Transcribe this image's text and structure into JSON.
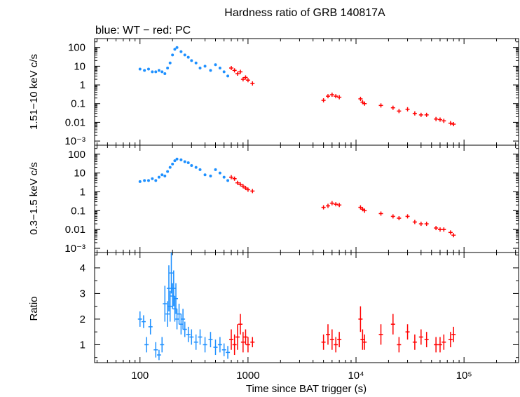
{
  "chart_data": [
    {
      "type": "scatter",
      "panel": "top",
      "title": "Hardness ratio of GRB 140817A",
      "subtitle": "blue: WT − red: PC",
      "ylabel": "1.51−10 keV c/s",
      "yscale": "log",
      "ylim": [
        0.0006,
        300
      ],
      "ytick_labels": [
        "100",
        "10",
        "1",
        "0.1",
        "0.01",
        "10⁻³"
      ],
      "series": [
        {
          "color": "#1e90ff",
          "x": [
            100,
            110,
            120,
            130,
            140,
            150,
            160,
            170,
            180,
            190,
            200,
            210,
            220,
            240,
            260,
            280,
            300,
            330,
            360,
            400,
            450,
            500,
            550,
            600,
            650
          ],
          "y": [
            7,
            6,
            7,
            5,
            5,
            6,
            5,
            4,
            8,
            15,
            40,
            80,
            100,
            60,
            40,
            30,
            20,
            15,
            8,
            10,
            6,
            12,
            8,
            5,
            3
          ]
        },
        {
          "color": "#ff0000",
          "x": [
            700,
            750,
            800,
            850,
            900,
            950,
            1000,
            1100
          ],
          "y": [
            8,
            6,
            4,
            5,
            2,
            2.5,
            1.8,
            1.2
          ],
          "xerr_style": "cross"
        },
        {
          "color": "#ff0000",
          "x": [
            5000,
            5500,
            6000,
            6500,
            7000,
            11000,
            11500,
            12000,
            17000,
            22000,
            25000,
            30000,
            35000,
            40000,
            45000,
            55000,
            60000,
            65000,
            75000,
            80000
          ],
          "y": [
            0.15,
            0.25,
            0.3,
            0.25,
            0.22,
            0.18,
            0.12,
            0.1,
            0.08,
            0.06,
            0.04,
            0.05,
            0.03,
            0.025,
            0.025,
            0.015,
            0.014,
            0.012,
            0.009,
            0.008
          ],
          "xerr_style": "cross"
        }
      ]
    },
    {
      "type": "scatter",
      "panel": "middle",
      "ylabel": "0.3−1.5 keV c/s",
      "yscale": "log",
      "ylim": [
        0.0006,
        300
      ],
      "ytick_labels": [
        "100",
        "10",
        "1",
        "0.1",
        "0.01",
        "10⁻³"
      ],
      "series": [
        {
          "color": "#1e90ff",
          "x": [
            100,
            110,
            120,
            130,
            140,
            150,
            160,
            170,
            180,
            190,
            200,
            210,
            220,
            240,
            260,
            280,
            300,
            330,
            360,
            400,
            450,
            500,
            550,
            600,
            650
          ],
          "y": [
            3.5,
            4,
            4,
            5,
            4,
            6,
            8,
            7,
            12,
            20,
            30,
            45,
            55,
            50,
            40,
            35,
            25,
            20,
            15,
            8,
            7,
            15,
            10,
            6,
            4
          ]
        },
        {
          "color": "#ff0000",
          "x": [
            700,
            750,
            800,
            850,
            900,
            950,
            1000,
            1100
          ],
          "y": [
            6,
            5,
            3,
            2.5,
            2,
            1.6,
            1.3,
            1.1
          ],
          "xerr_style": "cross"
        },
        {
          "color": "#ff0000",
          "x": [
            5000,
            5500,
            6000,
            6500,
            7000,
            11000,
            11500,
            12000,
            17000,
            22000,
            25000,
            30000,
            35000,
            40000,
            45000,
            55000,
            60000,
            65000,
            75000,
            80000
          ],
          "y": [
            0.15,
            0.18,
            0.25,
            0.22,
            0.2,
            0.15,
            0.12,
            0.1,
            0.07,
            0.05,
            0.04,
            0.05,
            0.025,
            0.02,
            0.02,
            0.012,
            0.01,
            0.01,
            0.007,
            0.005
          ],
          "xerr_style": "cross"
        }
      ]
    },
    {
      "type": "scatter",
      "panel": "bottom",
      "xlabel": "Time since BAT trigger (s)",
      "ylabel": "Ratio",
      "xscale": "log",
      "xlim": [
        38,
        320000
      ],
      "ylim": [
        0.3,
        4.6
      ],
      "xtick_labels": [
        "100",
        "1000",
        "10⁴",
        "10⁵"
      ],
      "ytick_labels": [
        "1",
        "2",
        "3",
        "4"
      ],
      "series": [
        {
          "color": "#1e90ff",
          "x": [
            100,
            108,
            115,
            125,
            140,
            150,
            160,
            170,
            180,
            185,
            190,
            195,
            200,
            205,
            210,
            215,
            220,
            230,
            240,
            250,
            260,
            280,
            300,
            330,
            360,
            400,
            450,
            500,
            550,
            600,
            650
          ],
          "y": [
            2.0,
            1.9,
            1.0,
            1.7,
            0.8,
            0.6,
            1.0,
            2.6,
            2.2,
            3.2,
            2.5,
            3.8,
            2.9,
            3.2,
            2.4,
            2.8,
            2.0,
            2.2,
            1.8,
            2.0,
            1.6,
            1.4,
            1.3,
            1.1,
            1.3,
            1.0,
            1.2,
            0.9,
            1.0,
            0.8,
            0.7
          ],
          "yerr": [
            0.3,
            0.25,
            0.3,
            0.3,
            0.3,
            0.2,
            0.3,
            0.7,
            0.5,
            0.9,
            0.6,
            0.8,
            0.5,
            0.7,
            0.5,
            0.6,
            0.4,
            0.4,
            0.4,
            0.4,
            0.3,
            0.3,
            0.3,
            0.3,
            0.3,
            0.3,
            0.3,
            0.3,
            0.3,
            0.25,
            0.25
          ]
        },
        {
          "color": "#ff0000",
          "x": [
            700,
            750,
            800,
            850,
            900,
            950,
            1000,
            1100
          ],
          "y": [
            1.2,
            1.0,
            1.3,
            1.8,
            1.1,
            1.3,
            1.0,
            1.1
          ],
          "yerr": [
            0.4,
            0.4,
            0.5,
            0.4,
            0.4,
            0.3,
            0.3,
            0.2
          ]
        },
        {
          "color": "#ff0000",
          "x": [
            5000,
            5500,
            6000,
            6500,
            7000,
            11000,
            11500,
            12000,
            17000,
            22000,
            25000,
            30000,
            35000,
            40000,
            45000,
            55000,
            60000,
            65000,
            75000,
            80000
          ],
          "y": [
            1.1,
            1.4,
            1.2,
            1.0,
            1.2,
            2.0,
            1.2,
            1.1,
            1.4,
            1.8,
            1.0,
            1.5,
            1.1,
            1.3,
            1.2,
            1.0,
            1.0,
            1.1,
            1.2,
            1.4
          ],
          "yerr": [
            0.3,
            0.4,
            0.4,
            0.3,
            0.3,
            0.5,
            0.4,
            0.3,
            0.4,
            0.4,
            0.3,
            0.3,
            0.3,
            0.3,
            0.3,
            0.3,
            0.3,
            0.3,
            0.3,
            0.3
          ]
        }
      ]
    }
  ]
}
